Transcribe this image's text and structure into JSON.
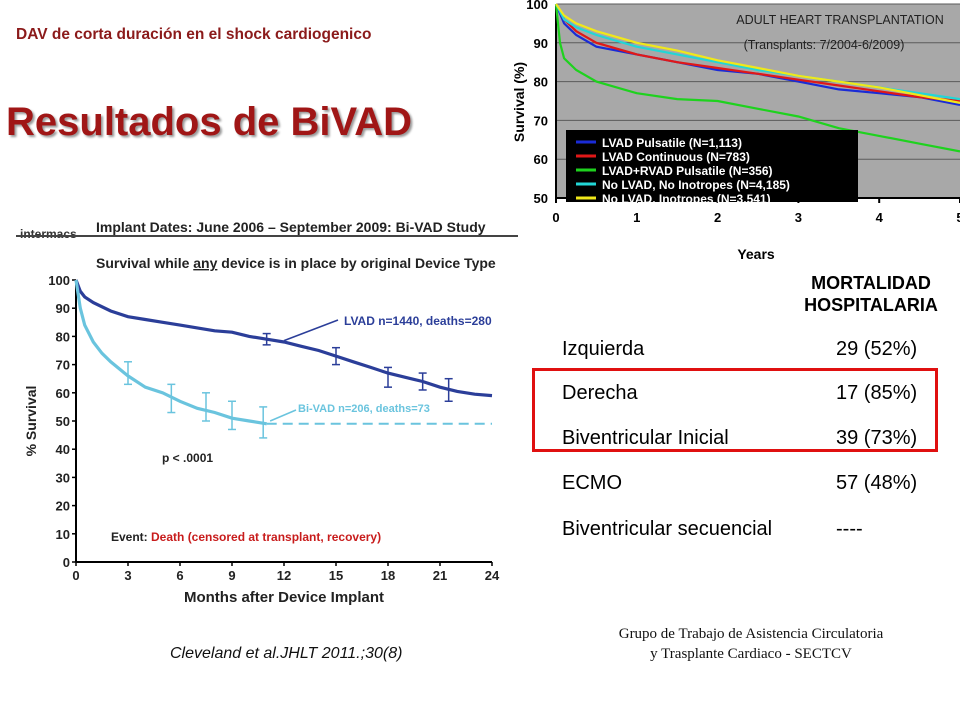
{
  "slide": {
    "subtitle": "DAV de corta duración en el shock cardiogenico",
    "title": "Resultados de BiVAD",
    "citation": "Cleveland et al.JHLT 2011.;30(8)",
    "footer_line1": "Grupo de Trabajo de Asistencia Circulatoria",
    "footer_line2": "y Trasplante Cardiaco - SECTCV"
  },
  "colors": {
    "title": "#a01616",
    "highlight_border": "#e01010",
    "top_plot_bg": "#a8a8a8",
    "lvad_dark_blue": "#2b3e99",
    "bivad_light_blue": "#6ac4de"
  },
  "mortality": {
    "header_line1": "MORTALIDAD",
    "header_line2": "HOSPITALARIA",
    "rows": [
      {
        "label": "Izquierda",
        "value": "29 (52%)"
      },
      {
        "label": "Derecha",
        "value": "17 (85%)"
      },
      {
        "label": "Biventricular Inicial",
        "value": "39 (73%)"
      },
      {
        "label": "ECMO",
        "value": "57 (48%)"
      },
      {
        "label": "Biventricular secuencial",
        "value": "----"
      }
    ],
    "highlighted_rows": [
      "Derecha",
      "Biventricular Inicial"
    ]
  },
  "chart_data": [
    {
      "type": "line",
      "title": "ADULT HEART TRANSPLANTATION",
      "subtitle": "(Transplants: 7/2004-6/2009)",
      "xlabel": "Years",
      "ylabel": "Survival (%)",
      "xlim": [
        0,
        5
      ],
      "ylim": [
        50,
        100
      ],
      "xticks": [
        "0",
        "1",
        "2",
        "3",
        "4",
        "5"
      ],
      "yticks": [
        "50",
        "60",
        "70",
        "80",
        "90",
        "100"
      ],
      "legend_position": "bottom-left",
      "series": [
        {
          "name": "LVAD Pulsatile (N=1,113)",
          "color": "#1a2bd6",
          "x": [
            0,
            0.1,
            0.25,
            0.5,
            1,
            1.5,
            2,
            2.5,
            3,
            3.5,
            4,
            4.5,
            5
          ],
          "y": [
            100,
            95,
            92,
            89,
            87,
            85,
            83,
            82,
            80,
            78,
            77,
            76,
            74
          ]
        },
        {
          "name": "LVAD Continuous (N=783)",
          "color": "#e01818",
          "x": [
            0,
            0.1,
            0.25,
            0.5,
            1,
            1.5,
            2,
            2.5,
            3,
            3.5,
            4,
            4.5,
            5
          ],
          "y": [
            100,
            96,
            93,
            90,
            87,
            85,
            83.5,
            82,
            80.5,
            79,
            77.5,
            76,
            75
          ]
        },
        {
          "name": "LVAD+RVAD Pulsatile (N=356)",
          "color": "#1ed21e",
          "x": [
            0,
            0.05,
            0.1,
            0.25,
            0.5,
            1,
            1.5,
            2,
            2.5,
            3,
            3.5,
            4,
            4.5,
            5
          ],
          "y": [
            100,
            90,
            86,
            83,
            80,
            77,
            75.5,
            75,
            73,
            71,
            68,
            66,
            64,
            62
          ]
        },
        {
          "name": "No LVAD, No Inotropes (N=4,185)",
          "color": "#22d6d6",
          "x": [
            0,
            0.1,
            0.25,
            0.5,
            1,
            1.5,
            2,
            2.5,
            3,
            3.5,
            4,
            4.5,
            5
          ],
          "y": [
            100,
            96,
            94,
            92,
            89,
            87,
            85,
            83,
            81.5,
            80,
            78.5,
            77,
            75.5
          ]
        },
        {
          "name": "No LVAD, Inotropes (N=3,541)",
          "color": "#f0e81a",
          "x": [
            0,
            0.1,
            0.25,
            0.5,
            1,
            1.5,
            2,
            2.5,
            3,
            3.5,
            4,
            4.5,
            5
          ],
          "y": [
            100,
            97,
            95,
            93,
            90,
            88,
            85.5,
            83.5,
            81.5,
            80,
            78.5,
            76.5,
            74.5
          ]
        }
      ]
    },
    {
      "type": "line",
      "brand": "intermacs",
      "title": "Implant Dates:  June 2006 – September 2009:  Bi-VAD Study",
      "subtitle_parts": [
        "Survival while ",
        "any",
        " device is in place by original Device Type"
      ],
      "xlabel": "Months after Device Implant",
      "ylabel": "% Survival",
      "xlim": [
        0,
        24
      ],
      "ylim": [
        0,
        100
      ],
      "xticks": [
        "0",
        "3",
        "6",
        "9",
        "12",
        "15",
        "18",
        "21",
        "24"
      ],
      "yticks": [
        "0",
        "10",
        "20",
        "30",
        "40",
        "50",
        "60",
        "70",
        "80",
        "90",
        "100"
      ],
      "annotation_p": "p < .0001",
      "event_label": "Event:",
      "event_text": "Death (censored at transplant, recovery)",
      "series": [
        {
          "name": "LVAD n=1440, deaths=280",
          "color": "#2b3e99",
          "x": [
            0,
            0.25,
            0.5,
            1,
            2,
            3,
            4,
            5,
            6,
            7,
            8,
            9,
            10,
            11,
            12,
            13,
            14,
            15,
            16,
            17,
            18,
            19,
            20,
            21,
            22,
            23,
            24
          ],
          "y": [
            100,
            96,
            94,
            92,
            89,
            87,
            86,
            85,
            84,
            83,
            82,
            81.5,
            80,
            79,
            78,
            76.5,
            75,
            73,
            71,
            69,
            67,
            65.5,
            64,
            62,
            60.5,
            59.5,
            59
          ],
          "error_bars": [
            {
              "x": 11,
              "y": 79,
              "lo": 77,
              "hi": 81
            },
            {
              "x": 15,
              "y": 73,
              "lo": 70,
              "hi": 76
            },
            {
              "x": 18,
              "y": 66,
              "lo": 62,
              "hi": 69
            },
            {
              "x": 20,
              "y": 64,
              "lo": 61,
              "hi": 67
            },
            {
              "x": 21.5,
              "y": 61,
              "lo": 57,
              "hi": 65
            }
          ]
        },
        {
          "name": "Bi-VAD n=206, deaths=73",
          "color": "#6ac4de",
          "x": [
            0,
            0.25,
            0.5,
            1,
            1.5,
            2,
            3,
            4,
            5,
            6,
            7,
            8,
            9,
            10,
            11,
            12,
            13,
            14,
            15,
            16,
            17,
            18,
            19,
            20,
            21,
            22,
            23,
            24
          ],
          "y": [
            100,
            90,
            84,
            78,
            74,
            71,
            66,
            62,
            60,
            57,
            54.5,
            53,
            51,
            50,
            49,
            49,
            49,
            49,
            49,
            49,
            49,
            49,
            49,
            49,
            49,
            49,
            49,
            49
          ],
          "dashed_from_x": 11,
          "error_bars": [
            {
              "x": 3,
              "y": 67,
              "lo": 63,
              "hi": 71
            },
            {
              "x": 5.5,
              "y": 58,
              "lo": 53,
              "hi": 63
            },
            {
              "x": 7.5,
              "y": 55,
              "lo": 50,
              "hi": 60
            },
            {
              "x": 9,
              "y": 52,
              "lo": 47,
              "hi": 57
            },
            {
              "x": 10.8,
              "y": 49,
              "lo": 44,
              "hi": 55
            }
          ]
        }
      ]
    }
  ]
}
